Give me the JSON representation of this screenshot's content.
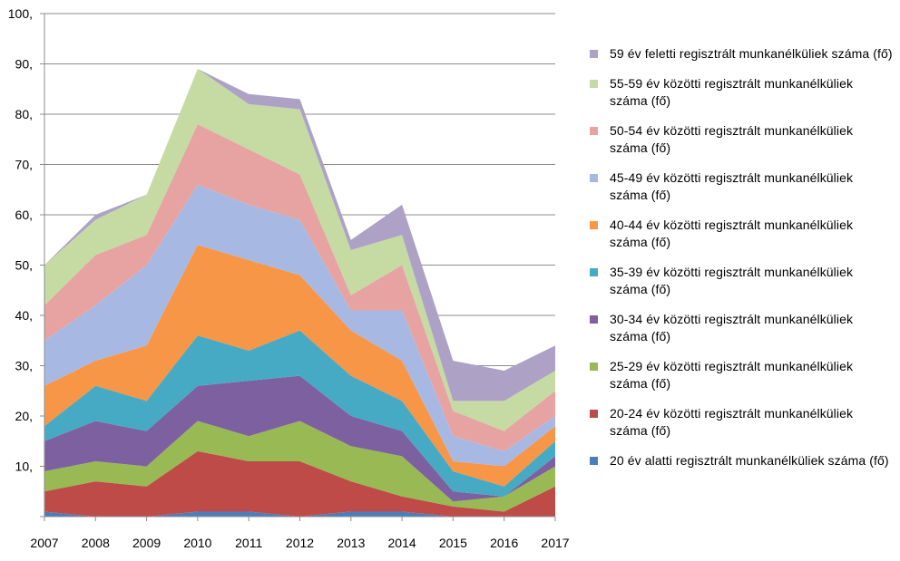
{
  "chart_data": {
    "type": "area",
    "stacked": true,
    "x": [
      "2007",
      "2008",
      "2009",
      "2010",
      "2011",
      "2012",
      "2013",
      "2014",
      "2015",
      "2016",
      "2017"
    ],
    "ylim": [
      0,
      100
    ],
    "yticks": [
      "",
      "10,",
      "20,",
      "30,",
      "40,",
      "50,",
      "60,",
      "70,",
      "80,",
      "90,",
      "100,"
    ],
    "grid": true,
    "legend_position": "right",
    "series": [
      {
        "name": "20 év alatti regisztrált munkanélküliek száma (fő)",
        "color": "#4a7ebb",
        "values": [
          1,
          0,
          0,
          1,
          1,
          0,
          1,
          1,
          0,
          0,
          0
        ]
      },
      {
        "name": "20-24 év közötti regisztrált munkanélküliek száma (fő)",
        "color": "#be4b48",
        "values": [
          4,
          7,
          6,
          12,
          10,
          11,
          6,
          3,
          2,
          1,
          6
        ]
      },
      {
        "name": "25-29 év közötti regisztrált munkanélküliek száma (fő)",
        "color": "#98b954",
        "values": [
          4,
          4,
          4,
          6,
          5,
          8,
          7,
          8,
          1,
          3,
          4
        ]
      },
      {
        "name": "30-34 év közötti regisztrált munkanélküliek száma (fő)",
        "color": "#7d60a0",
        "values": [
          6,
          8,
          7,
          7,
          11,
          9,
          6,
          5,
          2,
          0,
          2
        ]
      },
      {
        "name": "35-39 év közötti regisztrált munkanélküliek száma (fő)",
        "color": "#46aac5",
        "values": [
          3,
          7,
          6,
          10,
          6,
          9,
          8,
          6,
          4,
          2,
          3
        ]
      },
      {
        "name": "40-44 év közötti regisztrált munkanélküliek száma  (fő)",
        "color": "#f79646",
        "values": [
          8,
          5,
          11,
          18,
          18,
          11,
          9,
          8,
          2,
          4,
          3
        ]
      },
      {
        "name": "45-49 év közötti regisztrált munkanélküliek száma  (fő)",
        "color": "#a7b9e3",
        "values": [
          9,
          11,
          16,
          12,
          11,
          11,
          4,
          10,
          5,
          3,
          2
        ]
      },
      {
        "name": "50-54 év közötti regisztrált munkanélküliek száma  (fő)",
        "color": "#e6a3a1",
        "values": [
          7,
          10,
          6,
          12,
          11,
          9,
          3,
          9,
          5,
          4,
          5
        ]
      },
      {
        "name": "55-59 év közötti regisztrált munkanélküliek száma (fő)",
        "color": "#c5dba3",
        "values": [
          8,
          7,
          8,
          11,
          9,
          13,
          9,
          6,
          2,
          6,
          4
        ]
      },
      {
        "name": "59 év feletti regisztrált munkanélküliek száma (fő)",
        "color": "#ada1c6",
        "values": [
          0,
          1,
          0,
          0,
          2,
          2,
          2,
          6,
          8,
          6,
          5
        ]
      }
    ]
  }
}
